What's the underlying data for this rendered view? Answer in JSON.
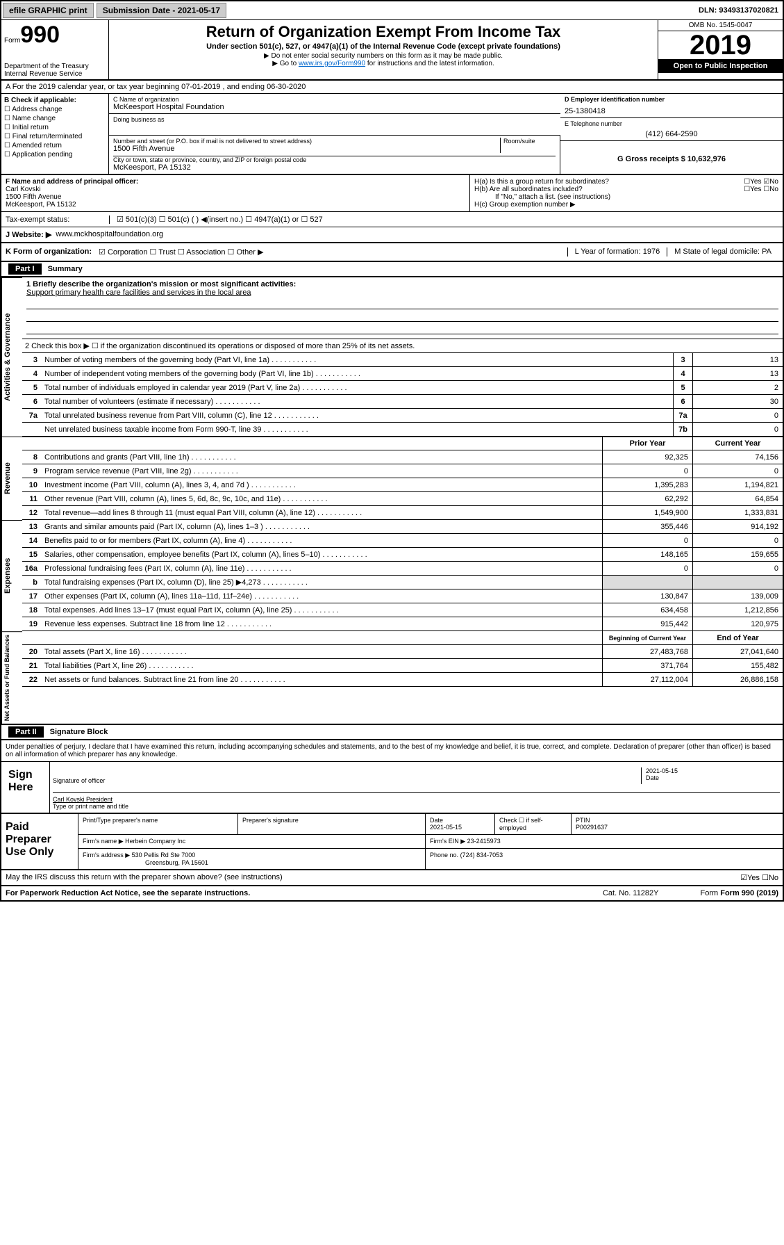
{
  "header": {
    "efile": "efile GRAPHIC print",
    "sub_date_lbl": "Submission Date - 2021-05-17",
    "dln": "DLN: 93493137020821"
  },
  "form": {
    "prefix": "Form",
    "number": "990",
    "dept": "Department of the Treasury",
    "irs": "Internal Revenue Service"
  },
  "title": {
    "main": "Return of Organization Exempt From Income Tax",
    "sub": "Under section 501(c), 527, or 4947(a)(1) of the Internal Revenue Code (except private foundations)",
    "note1": "▶ Do not enter social security numbers on this form as it may be made public.",
    "note2_pre": "▶ Go to ",
    "note2_link": "www.irs.gov/Form990",
    "note2_post": " for instructions and the latest information."
  },
  "year_box": {
    "omb": "OMB No. 1545-0047",
    "year": "2019",
    "open": "Open to Public Inspection"
  },
  "period": "A For the 2019 calendar year, or tax year beginning 07-01-2019    , and ending 06-30-2020",
  "check_b": {
    "hdr": "B Check if applicable:",
    "items": [
      "☐ Address change",
      "☐ Name change",
      "☐ Initial return",
      "☐ Final return/terminated",
      "☐ Amended return",
      "☐ Application pending"
    ]
  },
  "org": {
    "name_lbl": "C Name of organization",
    "name": "McKeesport Hospital Foundation",
    "dba_lbl": "Doing business as",
    "addr_lbl": "Number and street (or P.O. box if mail is not delivered to street address)",
    "room_lbl": "Room/suite",
    "addr": "1500 Fifth Avenue",
    "city_lbl": "City or town, state or province, country, and ZIP or foreign postal code",
    "city": "McKeesport, PA  15132"
  },
  "d": {
    "lbl": "D Employer identification number",
    "val": "25-1380418"
  },
  "e": {
    "lbl": "E Telephone number",
    "val": "(412) 664-2590"
  },
  "g": {
    "lbl": "G Gross receipts $ 10,632,976"
  },
  "officer": {
    "lbl": "F  Name and address of principal officer:",
    "name": "Carl Kovski",
    "addr1": "1500 Fifth Avenue",
    "addr2": "McKeesport, PA  15132"
  },
  "h": {
    "a": "H(a)  Is this a group return for subordinates?",
    "a_ans": "☐Yes ☑No",
    "b": "H(b)  Are all subordinates included?",
    "b_ans": "☐Yes ☐No",
    "note": "If \"No,\" attach a list. (see instructions)",
    "c": "H(c)  Group exemption number ▶"
  },
  "tax_status": {
    "lbl": "Tax-exempt status:",
    "opts": "☑ 501(c)(3)   ☐ 501(c) (  ) ◀(insert no.)     ☐ 4947(a)(1) or   ☐ 527"
  },
  "website": {
    "lbl": "J    Website: ▶",
    "val": "www.mckhospitalfoundation.org"
  },
  "k": {
    "lbl": "K Form of organization:",
    "opts": "☑ Corporation  ☐ Trust  ☐ Association  ☐ Other ▶"
  },
  "l": "L Year of formation: 1976",
  "m": "M State of legal domicile: PA",
  "parts": {
    "p1": "Part I",
    "p1_title": "Summary",
    "p2": "Part II",
    "p2_title": "Signature Block"
  },
  "summary": {
    "line1_lbl": "1  Briefly describe the organization's mission or most significant activities:",
    "mission": "Support primary health care facilities and services in the local area",
    "line2": "2    Check this box ▶ ☐  if the organization discontinued its operations or disposed of more than 25% of its net assets.",
    "rows_gov": [
      {
        "n": "3",
        "d": "Number of voting members of the governing body (Part VI, line 1a)",
        "box": "3",
        "v": "13"
      },
      {
        "n": "4",
        "d": "Number of independent voting members of the governing body (Part VI, line 1b)",
        "box": "4",
        "v": "13"
      },
      {
        "n": "5",
        "d": "Total number of individuals employed in calendar year 2019 (Part V, line 2a)",
        "box": "5",
        "v": "2"
      },
      {
        "n": "6",
        "d": "Total number of volunteers (estimate if necessary)",
        "box": "6",
        "v": "30"
      },
      {
        "n": "7a",
        "d": "Total unrelated business revenue from Part VIII, column (C), line 12",
        "box": "7a",
        "v": "0"
      },
      {
        "n": "",
        "d": "Net unrelated business taxable income from Form 990-T, line 39",
        "box": "7b",
        "v": "0"
      }
    ],
    "col_hdr_prior": "Prior Year",
    "col_hdr_curr": "Current Year",
    "rows_rev": [
      {
        "n": "8",
        "d": "Contributions and grants (Part VIII, line 1h)",
        "p": "92,325",
        "c": "74,156"
      },
      {
        "n": "9",
        "d": "Program service revenue (Part VIII, line 2g)",
        "p": "0",
        "c": "0"
      },
      {
        "n": "10",
        "d": "Investment income (Part VIII, column (A), lines 3, 4, and 7d )",
        "p": "1,395,283",
        "c": "1,194,821"
      },
      {
        "n": "11",
        "d": "Other revenue (Part VIII, column (A), lines 5, 6d, 8c, 9c, 10c, and 11e)",
        "p": "62,292",
        "c": "64,854"
      },
      {
        "n": "12",
        "d": "Total revenue—add lines 8 through 11 (must equal Part VIII, column (A), line 12)",
        "p": "1,549,900",
        "c": "1,333,831"
      }
    ],
    "rows_exp": [
      {
        "n": "13",
        "d": "Grants and similar amounts paid (Part IX, column (A), lines 1–3 )",
        "p": "355,446",
        "c": "914,192"
      },
      {
        "n": "14",
        "d": "Benefits paid to or for members (Part IX, column (A), line 4)",
        "p": "0",
        "c": "0"
      },
      {
        "n": "15",
        "d": "Salaries, other compensation, employee benefits (Part IX, column (A), lines 5–10)",
        "p": "148,165",
        "c": "159,655"
      },
      {
        "n": "16a",
        "d": "Professional fundraising fees (Part IX, column (A), line 11e)",
        "p": "0",
        "c": "0"
      },
      {
        "n": "b",
        "d": "Total fundraising expenses (Part IX, column (D), line 25) ▶4,273",
        "p": "",
        "c": "",
        "shaded": true
      },
      {
        "n": "17",
        "d": "Other expenses (Part IX, column (A), lines 11a–11d, 11f–24e)",
        "p": "130,847",
        "c": "139,009"
      },
      {
        "n": "18",
        "d": "Total expenses. Add lines 13–17 (must equal Part IX, column (A), line 25)",
        "p": "634,458",
        "c": "1,212,856"
      },
      {
        "n": "19",
        "d": "Revenue less expenses. Subtract line 18 from line 12",
        "p": "915,442",
        "c": "120,975"
      }
    ],
    "col_hdr_beg": "Beginning of Current Year",
    "col_hdr_end": "End of Year",
    "rows_net": [
      {
        "n": "20",
        "d": "Total assets (Part X, line 16)",
        "p": "27,483,768",
        "c": "27,041,640"
      },
      {
        "n": "21",
        "d": "Total liabilities (Part X, line 26)",
        "p": "371,764",
        "c": "155,482"
      },
      {
        "n": "22",
        "d": "Net assets or fund balances. Subtract line 21 from line 20",
        "p": "27,112,004",
        "c": "26,886,158"
      }
    ]
  },
  "side_labels": {
    "gov": "Activities & Governance",
    "rev": "Revenue",
    "exp": "Expenses",
    "net": "Net Assets or Fund Balances"
  },
  "perjury": "Under penalties of perjury, I declare that I have examined this return, including accompanying schedules and statements, and to the best of my knowledge and belief, it is true, correct, and complete. Declaration of preparer (other than officer) is based on all information of which preparer has any knowledge.",
  "sign": {
    "lbl": "Sign Here",
    "sig_lbl": "Signature of officer",
    "date": "2021-05-15",
    "date_lbl": "Date",
    "name": "Carl Kovski  President",
    "name_lbl": "Type or print name and title"
  },
  "prep": {
    "lbl": "Paid Preparer Use Only",
    "name_lbl": "Print/Type preparer's name",
    "sig_lbl": "Preparer's signature",
    "date_lbl": "Date",
    "date": "2021-05-15",
    "check_lbl": "Check ☐ if self-employed",
    "ptin_lbl": "PTIN",
    "ptin": "P00291637",
    "firm_lbl": "Firm's name    ▶",
    "firm": "Herbein Company Inc",
    "ein_lbl": "Firm's EIN ▶",
    "ein": "23-2415973",
    "addr_lbl": "Firm's address ▶",
    "addr1": "530 Pellis Rd Ste 7000",
    "addr2": "Greensburg, PA  15601",
    "phone_lbl": "Phone no.",
    "phone": "(724) 834-7053"
  },
  "irs_discuss": {
    "q": "May the IRS discuss this return with the preparer shown above? (see instructions)",
    "ans": "☑Yes  ☐No"
  },
  "footer": {
    "pra": "For Paperwork Reduction Act Notice, see the separate instructions.",
    "cat": "Cat. No. 11282Y",
    "form": "Form 990 (2019)"
  }
}
